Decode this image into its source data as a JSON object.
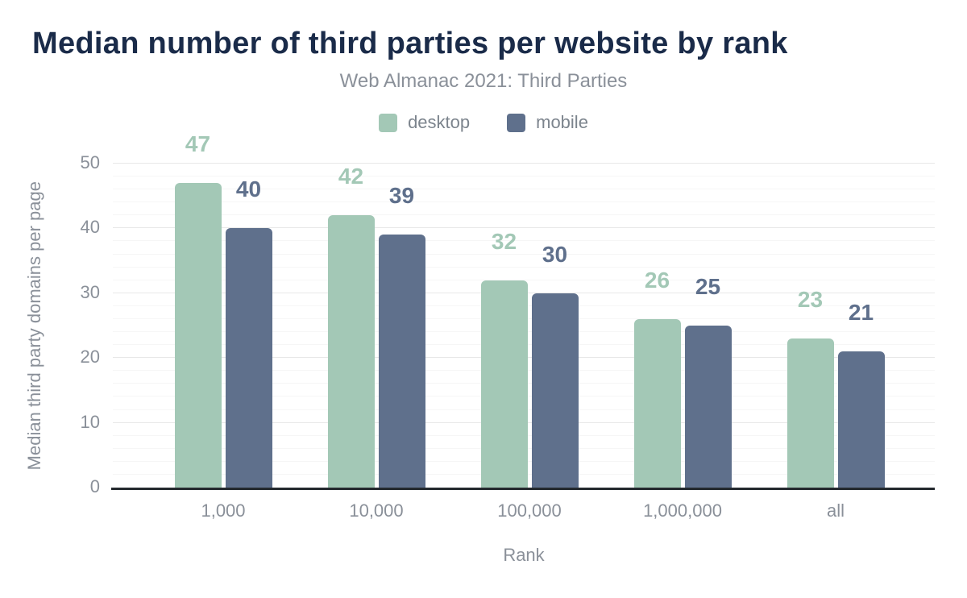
{
  "header": {
    "title": "Median number of third parties per website by rank",
    "subtitle": "Web Almanac 2021: Third Parties"
  },
  "chart_data": {
    "type": "bar",
    "title": "Median number of third parties per website by rank",
    "subtitle": "Web Almanac 2021: Third Parties",
    "categories": [
      "1,000",
      "10,000",
      "100,000",
      "1,000,000",
      "all"
    ],
    "series": [
      {
        "name": "desktop",
        "color": "#a3c8b6",
        "values": [
          47,
          42,
          32,
          26,
          23
        ]
      },
      {
        "name": "mobile",
        "color": "#5f708c",
        "values": [
          40,
          39,
          30,
          25,
          21
        ]
      }
    ],
    "xlabel": "Rank",
    "ylabel": "Median third party domains per page",
    "ylim": [
      0,
      50
    ],
    "yticks": [
      0,
      10,
      20,
      30,
      40,
      50
    ],
    "minor_grid_step": 2,
    "grid": true,
    "legend_position": "top",
    "data_labels": true
  },
  "colors": {
    "title_text": "#1a2b49",
    "subtitle_text": "#8a9099",
    "axis_text": "#8a9099",
    "legend_text": "#7c848d",
    "axis_line": "#24292e",
    "grid_major": "#e8e8e8",
    "grid_minor": "#f6f6f6",
    "background": "#ffffff"
  }
}
